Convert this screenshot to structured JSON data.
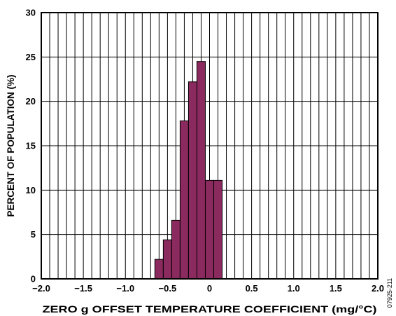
{
  "chart_data": {
    "type": "bar",
    "title": "",
    "xlabel": "ZERO g OFFSET TEMPERATURE COEFFICIENT (mg/°C)",
    "ylabel": "PERCENT OF POPULATION (%)",
    "xlim": [
      -2.0,
      2.0
    ],
    "ylim": [
      0,
      30
    ],
    "grid": true,
    "x_tick_labels": [
      "−2.0",
      "−1.5",
      "−1.0",
      "−0.5",
      "0",
      "0.5",
      "1.0",
      "1.5",
      "2.0"
    ],
    "y_tick_labels": [
      "0",
      "5",
      "10",
      "15",
      "20",
      "25",
      "30"
    ],
    "bin_width": 0.1,
    "bin_starts": [
      -0.65,
      -0.55,
      -0.45,
      -0.35,
      -0.25,
      -0.15,
      -0.05,
      0.05
    ],
    "values": [
      2.2,
      4.4,
      6.6,
      17.8,
      22.2,
      24.5,
      11.1,
      11.1
    ],
    "bar_color": "#8b2a5e",
    "figure_id": "07925-211"
  }
}
